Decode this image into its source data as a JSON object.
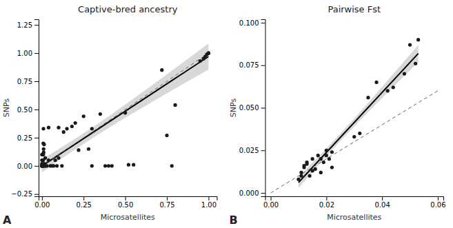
{
  "chart_data": [
    {
      "type": "scatter",
      "title": "Captive-bred ancestry",
      "xlabel": "Microsatellites",
      "ylabel": "SNPs",
      "annotations": [
        "A"
      ],
      "xlim": [
        -0.02,
        1.05
      ],
      "ylim": [
        -0.27,
        1.3
      ],
      "xticks": [
        {
          "value": 0.0,
          "label": "0.00"
        },
        0.25,
        {
          "value": 0.5,
          "label": "0.50"
        },
        0.75,
        {
          "value": 1.0,
          "label": "1.00"
        }
      ],
      "yticks": [
        {
          "value": -0.25,
          "label": "−0.25"
        },
        {
          "value": 0.0,
          "label": "0.00"
        },
        0.25,
        {
          "value": 0.5,
          "label": "0.50"
        },
        0.75,
        {
          "value": 1.0,
          "label": "1.00"
        },
        1.25
      ],
      "grid": false,
      "series": [
        {
          "type": "scatter",
          "marker": "circle",
          "color": "#1a1a1a",
          "x": [
            0.0,
            0.0,
            0.0,
            0.0,
            0.0,
            0.0,
            0.0,
            0.0,
            0.0,
            0.0,
            0.005,
            0.005,
            0.007,
            0.007,
            0.008,
            0.008,
            0.009,
            0.01,
            0.01,
            0.01,
            0.01,
            0.012,
            0.013,
            0.014,
            0.02,
            0.02,
            0.02,
            0.03,
            0.04,
            0.04,
            0.05,
            0.06,
            0.07,
            0.08,
            0.09,
            0.1,
            0.1,
            0.12,
            0.13,
            0.15,
            0.18,
            0.2,
            0.22,
            0.25,
            0.28,
            0.3,
            0.3,
            0.35,
            0.38,
            0.4,
            0.42,
            0.5,
            0.52,
            0.55,
            0.72,
            0.75,
            0.78,
            0.8,
            0.95,
            0.97,
            0.98,
            0.99,
            1.0,
            1.0,
            1.0
          ],
          "values": [
            0.0,
            0.0,
            0.0,
            0.0,
            0.0,
            0.0,
            0.01,
            0.02,
            0.05,
            0.1,
            0.0,
            0.0,
            0.0,
            0.05,
            0.1,
            0.2,
            0.33,
            0.0,
            0.01,
            0.12,
            0.15,
            0.02,
            0.19,
            0.0,
            0.0,
            0.0,
            0.07,
            0.0,
            0.05,
            0.34,
            0.0,
            0.0,
            0.0,
            0.05,
            0.0,
            0.07,
            0.34,
            0.0,
            0.3,
            0.33,
            0.35,
            0.38,
            0.14,
            0.44,
            0.15,
            0.33,
            0.0,
            0.46,
            0.0,
            0.0,
            0.0,
            0.47,
            0.01,
            0.01,
            0.85,
            0.27,
            0.0,
            0.54,
            0.93,
            0.95,
            0.97,
            0.99,
            1.0,
            1.0,
            1.0
          ]
        },
        {
          "type": "area",
          "color": "#c8c8c8",
          "x": [
            0.0,
            0.1,
            0.2,
            0.3,
            0.4,
            0.5,
            0.6,
            0.7,
            0.8,
            0.9,
            1.0
          ],
          "lower": [
            -0.05808,
            0.04606,
            0.14697,
            0.24383,
            0.33668,
            0.42637,
            0.51391,
            0.60006,
            0.68533,
            0.77001,
            0.85429
          ],
          "upper": [
            0.05808,
            0.14794,
            0.24103,
            0.33817,
            0.43932,
            0.54363,
            0.65009,
            0.75794,
            0.86668,
            0.97599,
            1.08571
          ]
        },
        {
          "type": "line",
          "line_style": "solid",
          "color": "#000000",
          "x": [
            0.0,
            1.0
          ],
          "values": [
            0.0,
            0.97
          ]
        },
        {
          "type": "line",
          "line_style": "dashed",
          "color": "#666666",
          "x": [
            0.0,
            1.0
          ],
          "values": [
            0.0,
            1.0
          ]
        }
      ]
    },
    {
      "type": "scatter",
      "title": "Pairwise Fst",
      "xlabel": "Microsatellites",
      "ylabel": "SNPs",
      "annotations": [
        "B"
      ],
      "xlim": [
        -0.002,
        0.062
      ],
      "ylim": [
        -0.002,
        0.102
      ],
      "xticks": [
        {
          "value": 0.0,
          "label": "0.00"
        },
        0.02,
        0.04,
        0.06
      ],
      "yticks": [
        {
          "value": 0.0,
          "label": "0.000"
        },
        0.025,
        {
          "value": 0.05,
          "label": "0.050"
        },
        0.075,
        {
          "value": 0.1,
          "label": "0.100"
        }
      ],
      "grid": false,
      "series": [
        {
          "type": "scatter",
          "marker": "circle",
          "color": "#1a1a1a",
          "x": [
            0.01,
            0.011,
            0.011,
            0.012,
            0.012,
            0.013,
            0.013,
            0.014,
            0.015,
            0.015,
            0.016,
            0.017,
            0.018,
            0.018,
            0.019,
            0.02,
            0.02,
            0.021,
            0.022,
            0.022,
            0.03,
            0.032,
            0.035,
            0.038,
            0.042,
            0.044,
            0.048,
            0.05,
            0.052,
            0.053
          ],
          "values": [
            0.008,
            0.01,
            0.012,
            0.015,
            0.016,
            0.017,
            0.018,
            0.01,
            0.013,
            0.02,
            0.014,
            0.022,
            0.02,
            0.012,
            0.018,
            0.025,
            0.022,
            0.02,
            0.024,
            0.015,
            0.033,
            0.035,
            0.056,
            0.065,
            0.06,
            0.062,
            0.07,
            0.087,
            0.076,
            0.09
          ]
        },
        {
          "type": "area",
          "color": "#c8c8c8",
          "x": [
            0.01,
            0.015,
            0.02,
            0.025,
            0.03,
            0.035,
            0.04,
            0.045,
            0.05,
            0.053
          ],
          "lower": [
            0.0029,
            0.01225,
            0.02143,
            0.03037,
            0.03902,
            0.04743,
            0.05569,
            0.06386,
            0.07197,
            0.07683
          ],
          "upper": [
            0.00941,
            0.01768,
            0.02611,
            0.03479,
            0.04375,
            0.05295,
            0.06231,
            0.07175,
            0.08125,
            0.08697
          ]
        },
        {
          "type": "line",
          "line_style": "solid",
          "color": "#000000",
          "x": [
            0.01,
            0.053
          ],
          "values": [
            0.006156,
            0.081897
          ]
        },
        {
          "type": "line",
          "line_style": "dashed",
          "color": "#666666",
          "x": [
            0.0,
            0.06
          ],
          "values": [
            0.0,
            0.06
          ]
        }
      ]
    }
  ]
}
